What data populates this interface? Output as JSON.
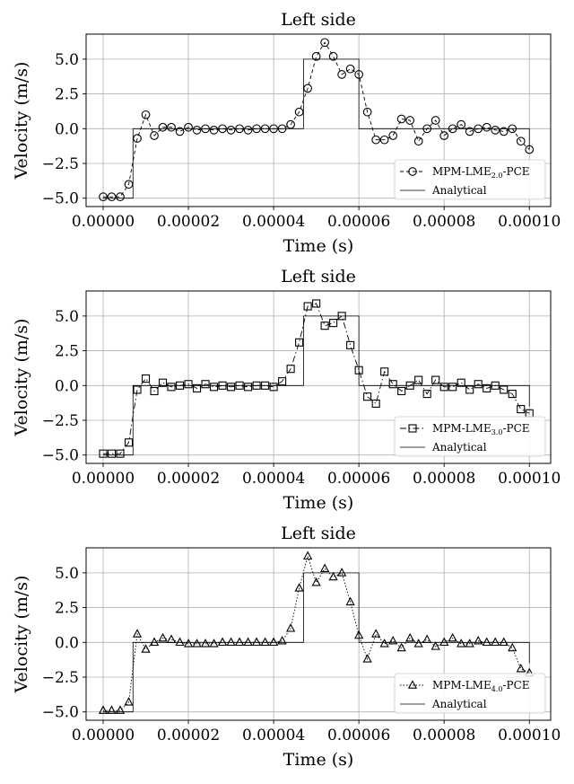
{
  "chart_data": [
    {
      "type": "line",
      "title": "Left side",
      "xlabel": "Time (s)",
      "ylabel": "Velocity (m/s)",
      "xlim": [
        -4e-06,
        0.000105
      ],
      "ylim": [
        -5.6,
        6.8
      ],
      "xticks": [
        0,
        2e-05,
        4e-05,
        6e-05,
        8e-05,
        0.0001
      ],
      "xtick_labels": [
        "0.00000",
        "0.00002",
        "0.00004",
        "0.00006",
        "0.00008",
        "0.00010"
      ],
      "yticks": [
        -5,
        -2.5,
        0,
        2.5,
        5
      ],
      "ytick_labels": [
        "−5.0",
        "−2.5",
        "0.0",
        "2.5",
        "5.0"
      ],
      "grid": true,
      "legend_position": "lower-right",
      "series": [
        {
          "name": "MPM-LME_{2.0}-PCE",
          "name_main": "MPM-LME",
          "name_sub": "2.0",
          "name_suffix": "-PCE",
          "marker": "circle",
          "linestyle": "dashed",
          "x": [
            0,
            2e-06,
            4e-06,
            6e-06,
            8e-06,
            1e-05,
            1.2e-05,
            1.4e-05,
            1.6e-05,
            1.8e-05,
            2e-05,
            2.2e-05,
            2.4e-05,
            2.6e-05,
            2.8e-05,
            3e-05,
            3.2e-05,
            3.4e-05,
            3.6e-05,
            3.8e-05,
            4e-05,
            4.2e-05,
            4.4e-05,
            4.6e-05,
            4.8e-05,
            5e-05,
            5.2e-05,
            5.4e-05,
            5.6e-05,
            5.8e-05,
            6e-05,
            6.2e-05,
            6.4e-05,
            6.6e-05,
            6.8e-05,
            7e-05,
            7.2e-05,
            7.4e-05,
            7.6e-05,
            7.8e-05,
            8e-05,
            8.2e-05,
            8.4e-05,
            8.6e-05,
            8.8e-05,
            9e-05,
            9.2e-05,
            9.4e-05,
            9.6e-05,
            9.8e-05,
            0.0001
          ],
          "y": [
            -4.9,
            -4.9,
            -4.9,
            -4.0,
            -0.7,
            1.0,
            -0.5,
            0.1,
            0.1,
            -0.2,
            0.1,
            -0.1,
            0.0,
            -0.1,
            0.0,
            -0.1,
            0.0,
            -0.1,
            0.0,
            0.0,
            0.0,
            0.0,
            0.3,
            1.2,
            2.9,
            5.2,
            6.2,
            5.2,
            3.9,
            4.3,
            3.9,
            1.2,
            -0.8,
            -0.8,
            -0.5,
            0.7,
            0.6,
            -0.9,
            0.0,
            0.6,
            -0.5,
            0.0,
            0.3,
            -0.2,
            0.0,
            0.1,
            -0.1,
            -0.2,
            0.0,
            -0.9,
            -1.5
          ]
        },
        {
          "name": "Analytical",
          "marker": "none",
          "linestyle": "solid",
          "x": [
            0,
            7e-06,
            7e-06,
            4.7e-05,
            4.7e-05,
            6e-05,
            6e-05,
            0.0001,
            0.0001
          ],
          "y": [
            -5,
            -5,
            0,
            0,
            5,
            5,
            0,
            0,
            -1.5
          ]
        }
      ]
    },
    {
      "type": "line",
      "title": "Left side",
      "xlabel": "Time (s)",
      "ylabel": "Velocity (m/s)",
      "xlim": [
        -4e-06,
        0.000105
      ],
      "ylim": [
        -5.6,
        6.8
      ],
      "xticks": [
        0,
        2e-05,
        4e-05,
        6e-05,
        8e-05,
        0.0001
      ],
      "xtick_labels": [
        "0.00000",
        "0.00002",
        "0.00004",
        "0.00006",
        "0.00008",
        "0.00010"
      ],
      "yticks": [
        -5,
        -2.5,
        0,
        2.5,
        5
      ],
      "ytick_labels": [
        "−5.0",
        "−2.5",
        "0.0",
        "2.5",
        "5.0"
      ],
      "grid": true,
      "legend_position": "lower-right",
      "series": [
        {
          "name": "MPM-LME_{3.0}-PCE",
          "name_main": "MPM-LME",
          "name_sub": "3.0",
          "name_suffix": "-PCE",
          "marker": "square",
          "linestyle": "dashdot",
          "x": [
            0,
            2e-06,
            4e-06,
            6e-06,
            8e-06,
            1e-05,
            1.2e-05,
            1.4e-05,
            1.6e-05,
            1.8e-05,
            2e-05,
            2.2e-05,
            2.4e-05,
            2.6e-05,
            2.8e-05,
            3e-05,
            3.2e-05,
            3.4e-05,
            3.6e-05,
            3.8e-05,
            4e-05,
            4.2e-05,
            4.4e-05,
            4.6e-05,
            4.8e-05,
            5e-05,
            5.2e-05,
            5.4e-05,
            5.6e-05,
            5.8e-05,
            6e-05,
            6.2e-05,
            6.4e-05,
            6.6e-05,
            6.8e-05,
            7e-05,
            7.2e-05,
            7.4e-05,
            7.6e-05,
            7.8e-05,
            8e-05,
            8.2e-05,
            8.4e-05,
            8.6e-05,
            8.8e-05,
            9e-05,
            9.2e-05,
            9.4e-05,
            9.6e-05,
            9.8e-05,
            0.0001
          ],
          "y": [
            -4.9,
            -4.9,
            -4.9,
            -4.1,
            -0.3,
            0.5,
            -0.4,
            0.2,
            -0.1,
            0.0,
            0.1,
            -0.2,
            0.1,
            -0.1,
            0.0,
            -0.1,
            0.0,
            -0.1,
            0.0,
            0.0,
            -0.1,
            0.3,
            1.2,
            3.1,
            5.7,
            5.9,
            4.3,
            4.5,
            5.0,
            2.9,
            1.1,
            -0.8,
            -1.3,
            1.0,
            0.1,
            -0.4,
            0.0,
            0.4,
            -0.6,
            0.4,
            -0.1,
            -0.1,
            0.2,
            -0.3,
            0.1,
            -0.2,
            0.0,
            -0.3,
            -0.6,
            -1.7,
            -2.0
          ]
        },
        {
          "name": "Analytical",
          "marker": "none",
          "linestyle": "solid",
          "x": [
            0,
            7e-06,
            7e-06,
            4.7e-05,
            4.7e-05,
            6e-05,
            6e-05,
            0.0001,
            0.0001
          ],
          "y": [
            -5,
            -5,
            0,
            0,
            5,
            5,
            0,
            0,
            -1.5
          ]
        }
      ]
    },
    {
      "type": "line",
      "title": "Left side",
      "xlabel": "Time (s)",
      "ylabel": "Velocity (m/s)",
      "xlim": [
        -4e-06,
        0.000105
      ],
      "ylim": [
        -5.6,
        6.8
      ],
      "xticks": [
        0,
        2e-05,
        4e-05,
        6e-05,
        8e-05,
        0.0001
      ],
      "xtick_labels": [
        "0.00000",
        "0.00002",
        "0.00004",
        "0.00006",
        "0.00008",
        "0.00010"
      ],
      "yticks": [
        -5,
        -2.5,
        0,
        2.5,
        5
      ],
      "ytick_labels": [
        "−5.0",
        "−2.5",
        "0.0",
        "2.5",
        "5.0"
      ],
      "grid": true,
      "legend_position": "lower-right",
      "series": [
        {
          "name": "MPM-LME_{4.0}-PCE",
          "name_main": "MPM-LME",
          "name_sub": "4.0",
          "name_suffix": "-PCE",
          "marker": "triangle",
          "linestyle": "dotted",
          "x": [
            0,
            2e-06,
            4e-06,
            6e-06,
            8e-06,
            1e-05,
            1.2e-05,
            1.4e-05,
            1.6e-05,
            1.8e-05,
            2e-05,
            2.2e-05,
            2.4e-05,
            2.6e-05,
            2.8e-05,
            3e-05,
            3.2e-05,
            3.4e-05,
            3.6e-05,
            3.8e-05,
            4e-05,
            4.2e-05,
            4.4e-05,
            4.6e-05,
            4.8e-05,
            5e-05,
            5.2e-05,
            5.4e-05,
            5.6e-05,
            5.8e-05,
            6e-05,
            6.2e-05,
            6.4e-05,
            6.6e-05,
            6.8e-05,
            7e-05,
            7.2e-05,
            7.4e-05,
            7.6e-05,
            7.8e-05,
            8e-05,
            8.2e-05,
            8.4e-05,
            8.6e-05,
            8.8e-05,
            9e-05,
            9.2e-05,
            9.4e-05,
            9.6e-05,
            9.8e-05,
            0.0001
          ],
          "y": [
            -4.9,
            -4.9,
            -4.9,
            -4.3,
            0.6,
            -0.5,
            0.0,
            0.3,
            0.2,
            0.0,
            -0.1,
            -0.1,
            -0.1,
            -0.1,
            0.0,
            0.0,
            0.0,
            0.0,
            0.0,
            0.0,
            0.0,
            0.1,
            1.0,
            3.9,
            6.2,
            4.3,
            5.3,
            4.7,
            5.0,
            2.9,
            0.5,
            -1.2,
            0.6,
            -0.1,
            0.1,
            -0.4,
            0.3,
            -0.1,
            0.2,
            -0.3,
            0.0,
            0.3,
            -0.1,
            -0.1,
            0.1,
            0.0,
            0.0,
            0.0,
            -0.4,
            -1.9,
            -2.2
          ]
        },
        {
          "name": "Analytical",
          "marker": "none",
          "linestyle": "solid",
          "x": [
            0,
            7e-06,
            7e-06,
            4.7e-05,
            4.7e-05,
            6e-05,
            6e-05,
            0.0001,
            0.0001
          ],
          "y": [
            -5,
            -5,
            0,
            0,
            5,
            5,
            0,
            0,
            -1.5
          ]
        }
      ]
    }
  ]
}
